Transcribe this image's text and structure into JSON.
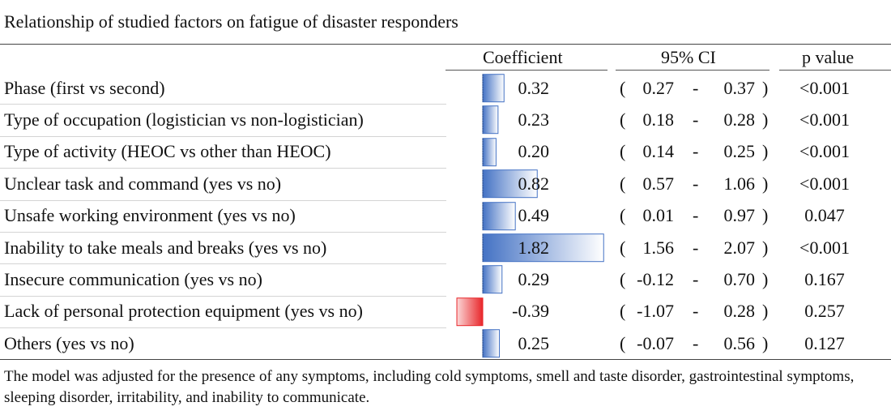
{
  "title": "Relationship of studied factors on fatigue of disaster responders",
  "headers": {
    "coefficient": "Coefficient",
    "ci": "95% CI",
    "pvalue": "p value"
  },
  "ci_symbols": {
    "open": "(",
    "dash": "-",
    "close": ")"
  },
  "colors": {
    "positive": "#4472c4",
    "negative": "#e8262a"
  },
  "chart_data": {
    "type": "table",
    "xlim": [
      -0.39,
      1.82
    ],
    "rows": [
      {
        "factor": "Phase (first vs second)",
        "coefficient": 0.32,
        "coef_label": "0.32",
        "ci_low": "0.27",
        "ci_high": "0.37",
        "p": "<0.001"
      },
      {
        "factor": "Type of occupation (logistician vs non-logistician)",
        "coefficient": 0.23,
        "coef_label": "0.23",
        "ci_low": "0.18",
        "ci_high": "0.28",
        "p": "<0.001"
      },
      {
        "factor": "Type of activity (HEOC vs other than HEOC)",
        "coefficient": 0.2,
        "coef_label": "0.20",
        "ci_low": "0.14",
        "ci_high": "0.25",
        "p": "<0.001"
      },
      {
        "factor": "Unclear task and command (yes vs no)",
        "coefficient": 0.82,
        "coef_label": "0.82",
        "ci_low": "0.57",
        "ci_high": "1.06",
        "p": "<0.001"
      },
      {
        "factor": "Unsafe working environment (yes vs no)",
        "coefficient": 0.49,
        "coef_label": "0.49",
        "ci_low": "0.01",
        "ci_high": "0.97",
        "p": "0.047"
      },
      {
        "factor": "Inability to take meals and breaks (yes vs no)",
        "coefficient": 1.82,
        "coef_label": "1.82",
        "ci_low": "1.56",
        "ci_high": "2.07",
        "p": "<0.001"
      },
      {
        "factor": "Insecure communication (yes vs no)",
        "coefficient": 0.29,
        "coef_label": "0.29",
        "ci_low": "-0.12",
        "ci_high": "0.70",
        "p": "0.167"
      },
      {
        "factor": "Lack of personal protection equipment (yes vs no)",
        "coefficient": -0.39,
        "coef_label": "-0.39",
        "ci_low": "-1.07",
        "ci_high": "0.28",
        "p": "0.257"
      },
      {
        "factor": "Others (yes vs no)",
        "coefficient": 0.25,
        "coef_label": "0.25",
        "ci_low": "-0.07",
        "ci_high": "0.56",
        "p": "0.127"
      }
    ]
  },
  "footnote": "The model was adjusted for the presence of any symptoms, including cold symptoms, smell and taste disorder, gastrointestinal symptoms, sleeping disorder, irritability, and inability to communicate."
}
